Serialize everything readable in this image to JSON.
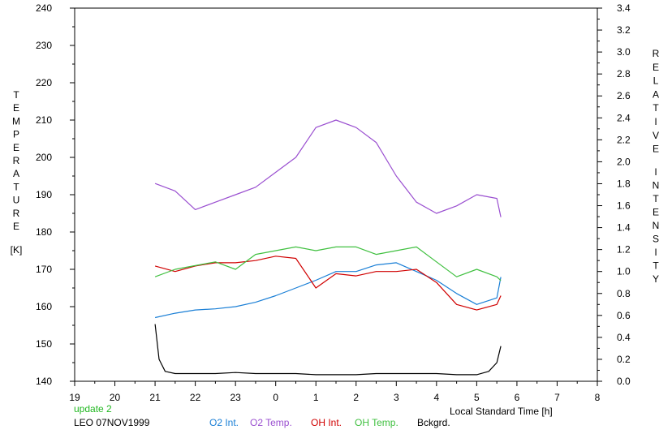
{
  "chart_data": {
    "type": "line",
    "x_ticks": [
      "19",
      "20",
      "21",
      "22",
      "23",
      "0",
      "1",
      "2",
      "3",
      "4",
      "5",
      "6",
      "7",
      "8"
    ],
    "y_left": {
      "label_letters": [
        "T",
        "E",
        "M",
        "P",
        "E",
        "R",
        "A",
        "T",
        "U",
        "R",
        "E"
      ],
      "unit": "[K]",
      "range": [
        140,
        240
      ],
      "ticks": [
        "240",
        "230",
        "220",
        "210",
        "200",
        "190",
        "180",
        "170",
        "160",
        "150",
        "140"
      ]
    },
    "y_right": {
      "label_word1": [
        "R",
        "E",
        "L",
        "A",
        "T",
        "I",
        "V",
        "E"
      ],
      "label_word2": [
        "I",
        "N",
        "T",
        "E",
        "N",
        "S",
        "I",
        "T",
        "Y"
      ],
      "range": [
        0.0,
        3.4
      ],
      "ticks": [
        "3.4",
        "3.2",
        "3.0",
        "2.8",
        "2.6",
        "2.4",
        "2.2",
        "2.0",
        "1.8",
        "1.6",
        "1.4",
        "1.2",
        "1.0",
        "0.8",
        "0.6",
        "0.4",
        "0.2",
        "0.0"
      ]
    },
    "xlabel": "Local Standard Time [h]",
    "series": [
      {
        "name": "O2 Int.",
        "axis": "right",
        "color": "#1a7fd6",
        "x": [
          21.0,
          21.5,
          22.0,
          22.5,
          23.0,
          23.5,
          24.0,
          24.5,
          25.0,
          25.5,
          26.0,
          26.5,
          27.0,
          27.5,
          28.0,
          28.5,
          29.0,
          29.5,
          29.6
        ],
        "y": [
          0.58,
          0.62,
          0.65,
          0.66,
          0.68,
          0.72,
          0.78,
          0.85,
          0.92,
          1.0,
          1.0,
          1.06,
          1.08,
          1.0,
          0.92,
          0.8,
          0.7,
          0.76,
          0.95
        ]
      },
      {
        "name": "O2 Temp.",
        "axis": "left",
        "color": "#9a4fd0",
        "x": [
          21.0,
          21.5,
          22.0,
          22.5,
          23.0,
          23.5,
          24.0,
          24.5,
          25.0,
          25.5,
          26.0,
          26.5,
          27.0,
          27.5,
          28.0,
          28.5,
          29.0,
          29.5,
          29.6
        ],
        "y": [
          193,
          191,
          186,
          188,
          190,
          192,
          196,
          200,
          208,
          210,
          208,
          204,
          195,
          188,
          185,
          187,
          190,
          189,
          184
        ]
      },
      {
        "name": "OH Int.",
        "axis": "right",
        "color": "#d00000",
        "x": [
          21.0,
          21.5,
          22.0,
          22.5,
          23.0,
          23.5,
          24.0,
          24.5,
          25.0,
          25.5,
          26.0,
          26.5,
          27.0,
          27.5,
          28.0,
          28.5,
          29.0,
          29.5,
          29.6
        ],
        "y": [
          1.05,
          1.0,
          1.05,
          1.08,
          1.08,
          1.1,
          1.14,
          1.12,
          0.85,
          0.98,
          0.96,
          1.0,
          1.0,
          1.02,
          0.9,
          0.7,
          0.65,
          0.7,
          0.78
        ]
      },
      {
        "name": "OH Temp.",
        "axis": "left",
        "color": "#40c040",
        "x": [
          21.0,
          21.5,
          22.0,
          22.5,
          23.0,
          23.5,
          24.0,
          24.5,
          25.0,
          25.5,
          26.0,
          26.5,
          27.0,
          27.5,
          28.0,
          28.5,
          29.0,
          29.5,
          29.6
        ],
        "y": [
          168,
          170,
          171,
          172,
          170,
          174,
          175,
          176,
          175,
          176,
          176,
          174,
          175,
          176,
          172,
          168,
          170,
          168,
          167
        ]
      },
      {
        "name": "Bckgrd.",
        "axis": "right",
        "color": "#000000",
        "x": [
          21.0,
          21.1,
          21.25,
          21.5,
          22.0,
          22.5,
          23.0,
          23.5,
          24.0,
          24.5,
          25.0,
          25.5,
          26.0,
          26.5,
          27.0,
          27.5,
          28.0,
          28.5,
          29.0,
          29.3,
          29.5,
          29.6
        ],
        "y": [
          0.52,
          0.2,
          0.09,
          0.07,
          0.07,
          0.07,
          0.08,
          0.07,
          0.07,
          0.07,
          0.06,
          0.06,
          0.06,
          0.07,
          0.07,
          0.07,
          0.07,
          0.06,
          0.06,
          0.09,
          0.17,
          0.32
        ]
      }
    ]
  },
  "info": {
    "update": "update 2",
    "station": "LEO 07NOV1999"
  }
}
